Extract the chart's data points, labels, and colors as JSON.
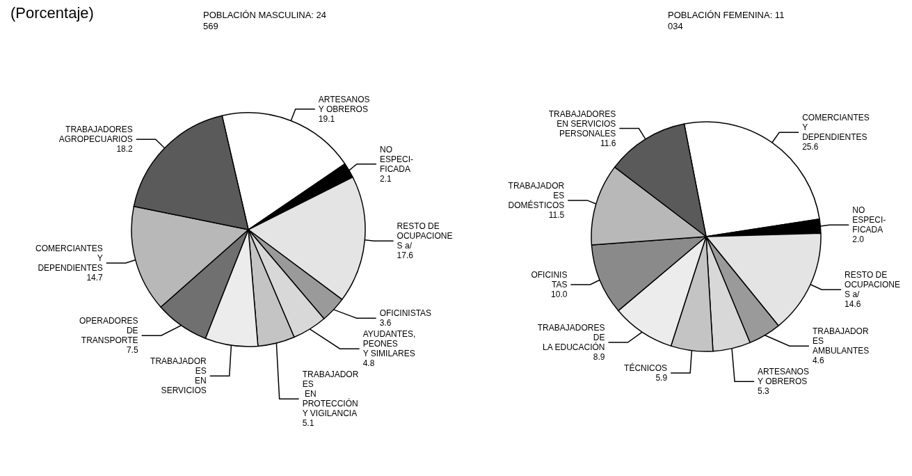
{
  "chart_data": [
    {
      "type": "pie",
      "title": "(Porcentaje)",
      "subtitle": "POBLACIÓN MASCULINA: 24\n569",
      "categories": [
        "ARTESANOS\nY OBREROS",
        "NO\nESPECI-\nFICADA",
        "RESTO DE\nOCUPACIONE\nS a/",
        "OFICINISTAS",
        "AYUDANTES,\nPEONES\nY SIMILARES",
        "TRABAJADOR\nES\n EN\nPROTECCIÓN\nY VIGILANCIA",
        "TRABAJADOR\nES\n EN\nSERVICIOS",
        "OPERADORES\nDE\nTRANSPORTE",
        "COMERCIANTES\nY\nDEPENDIENTES",
        "TRABAJADORES\nAGROPECUARIOS"
      ],
      "values": [
        19.1,
        2.1,
        17.6,
        3.6,
        4.8,
        5.1,
        7.3,
        7.5,
        14.7,
        18.2
      ],
      "value_labels": [
        "19.1",
        "2.1",
        "17.6",
        "3.6",
        "4.8",
        "5.1",
        null,
        "7.5",
        "14.7",
        "18.2"
      ],
      "colors": [
        "#ffffff",
        "#000000",
        "#e4e4e4",
        "#9a9a9a",
        "#d8d8d8",
        "#c4c4c4",
        "#ececec",
        "#707070",
        "#b8b8b8",
        "#5a5a5a"
      ],
      "legend": false
    },
    {
      "type": "pie",
      "subtitle": "POBLACIÓN FEMENINA: 11\n034",
      "categories": [
        "COMERCIANTES\nY\nDEPENDIENTES",
        "NO\nESPECI-\nFICADA",
        "RESTO DE\nOCUPACIONE\nS a/",
        "TRABAJADOR\nES\nAMBULANTES",
        "ARTESANOS\nY OBREROS",
        "TÉCNICOS",
        "TRABAJADORES\nDE\nLA EDUCACIÓN",
        "OFICINIS\nTAS",
        "TRABAJADOR\nES\nDOMÉSTICOS",
        "TRABAJADORES\n EN SERVICIOS\nPERSONALES"
      ],
      "values": [
        25.6,
        2.0,
        14.6,
        4.6,
        5.3,
        5.9,
        8.9,
        10.0,
        11.5,
        11.6
      ],
      "value_labels": [
        "25.6",
        "2.0",
        "14.6",
        "4.6",
        "5.3",
        "5.9",
        "8.9",
        "10.0",
        "11.5",
        "11.6"
      ],
      "colors": [
        "#ffffff",
        "#000000",
        "#e4e4e4",
        "#9a9a9a",
        "#d8d8d8",
        "#c4c4c4",
        "#ececec",
        "#8a8a8a",
        "#b8b8b8",
        "#5a5a5a"
      ],
      "legend": false
    }
  ]
}
